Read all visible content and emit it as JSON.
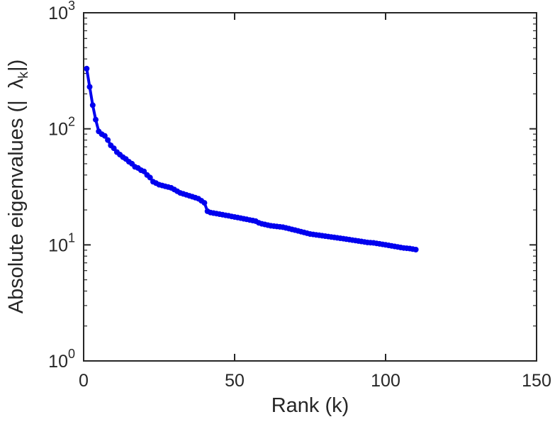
{
  "figure": {
    "background": "#ffffff",
    "axis_color": "#262626",
    "accent_color": "#0000EE"
  },
  "labels": {
    "x": "Rank (k)",
    "y_prefix": "Absolute eigenvalues (|",
    "y_symbol": "λ",
    "y_sub": "k",
    "y_suffix": "|)"
  },
  "chart_data": {
    "type": "line",
    "title": "",
    "xlabel": "Rank (k)",
    "ylabel": "Absolute eigenvalues (|lambda_k|)",
    "grid": false,
    "legend": "none",
    "x_axis": {
      "min": 0,
      "max": 150,
      "ticks": [
        0,
        50,
        100,
        150
      ]
    },
    "y_axis": {
      "scale": "log",
      "min": 1,
      "max": 1000,
      "tick_exponents": [
        0,
        1,
        2,
        3
      ]
    },
    "series": [
      {
        "name": "absolute-eigenvalues",
        "color": "#0000EE",
        "marker": "circle",
        "x_start": 1,
        "x_step": 1,
        "y": [
          330,
          230,
          160,
          120,
          95,
          90,
          87,
          80,
          72,
          68,
          63,
          60,
          57,
          55,
          52,
          50,
          47,
          46,
          44,
          43,
          40,
          38,
          35,
          34,
          33,
          32.5,
          32,
          31.5,
          31,
          30,
          29,
          28,
          27.5,
          27,
          26.5,
          26,
          25.5,
          25,
          24,
          23,
          19.5,
          19,
          18.8,
          18.6,
          18.4,
          18.2,
          18,
          17.8,
          17.6,
          17.4,
          17.2,
          17,
          16.8,
          16.6,
          16.4,
          16.2,
          16,
          15.5,
          15.2,
          15,
          14.8,
          14.6,
          14.5,
          14.4,
          14.3,
          14.2,
          14,
          13.8,
          13.6,
          13.4,
          13.2,
          13,
          12.8,
          12.6,
          12.4,
          12.3,
          12.2,
          12.1,
          12,
          11.9,
          11.8,
          11.7,
          11.6,
          11.5,
          11.4,
          11.3,
          11.2,
          11.1,
          11,
          10.9,
          10.8,
          10.7,
          10.6,
          10.5,
          10.45,
          10.4,
          10.3,
          10.2,
          10.1,
          10,
          9.9,
          9.8,
          9.7,
          9.6,
          9.5,
          9.4,
          9.35,
          9.3,
          9.2,
          9.1
        ]
      }
    ]
  }
}
